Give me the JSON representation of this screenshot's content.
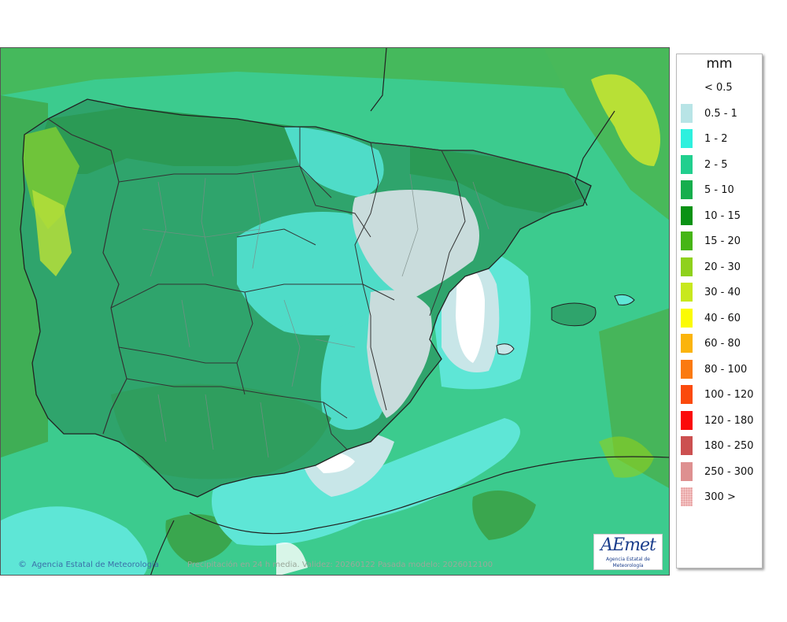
{
  "map": {
    "footer_credit": "Agencia Estatal de Meteorología",
    "footer_validity": "Precipitación en 24 h media. Validez: 20260122 Pasada modelo: 2026012100",
    "logo_text": "AEmet",
    "logo_subtext": "Agencia Estatal de Meteorología"
  },
  "legend": {
    "unit": "mm",
    "items": [
      {
        "label": "< 0.5",
        "color": "#ffffff"
      },
      {
        "label": "0.5 - 1",
        "color": "#b8e4e6"
      },
      {
        "label": "1 - 2",
        "color": "#2ef0de"
      },
      {
        "label": "2 - 5",
        "color": "#21cf8e"
      },
      {
        "label": "5 - 10",
        "color": "#16ae4d"
      },
      {
        "label": "10 - 15",
        "color": "#0a9214"
      },
      {
        "label": "15 - 20",
        "color": "#46b516"
      },
      {
        "label": "20 - 30",
        "color": "#8fd11c"
      },
      {
        "label": "30 - 40",
        "color": "#c8e81e"
      },
      {
        "label": "40 - 60",
        "color": "#fbfb04"
      },
      {
        "label": "60 - 80",
        "color": "#fbb40c"
      },
      {
        "label": "80 - 100",
        "color": "#fb7a10"
      },
      {
        "label": "100 - 120",
        "color": "#fb4a0c"
      },
      {
        "label": "120 - 180",
        "color": "#fb0a0a"
      },
      {
        "label": "180 - 250",
        "color": "#cc5050"
      },
      {
        "label": "250 - 300",
        "color": "#de9090"
      },
      {
        "label": "300 >",
        "color": "#f4c4c4"
      }
    ]
  }
}
